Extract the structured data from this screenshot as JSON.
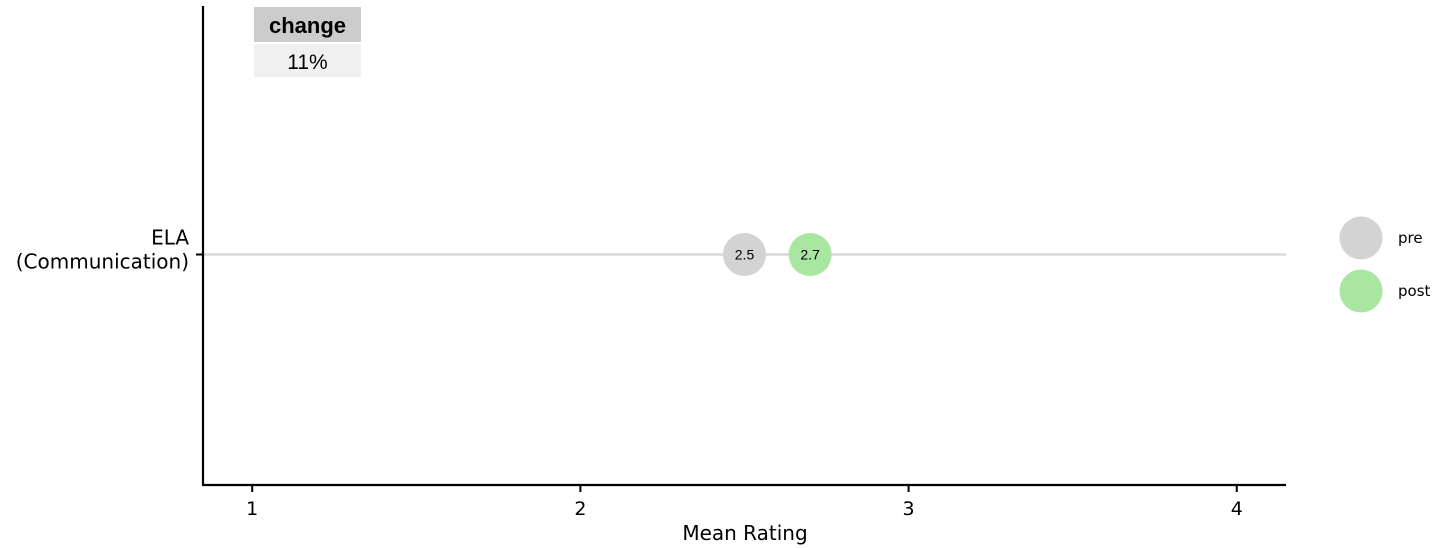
{
  "chart_data": {
    "type": "dot",
    "categories": [
      "ELA\n(Communication)"
    ],
    "series": [
      {
        "name": "pre",
        "color": "#d3d3d3",
        "values": [
          2.5
        ],
        "labels": [
          "2.5"
        ]
      },
      {
        "name": "post",
        "color": "#a8e6a1",
        "values": [
          2.7
        ],
        "labels": [
          "2.7"
        ]
      }
    ],
    "xlabel": "Mean Rating",
    "xticks": [
      "1",
      "2",
      "3",
      "4"
    ],
    "xlim": [
      0.85,
      4.15
    ],
    "grid": false,
    "legend": "right",
    "change_table": {
      "header": "change",
      "values": [
        "11%"
      ]
    }
  }
}
